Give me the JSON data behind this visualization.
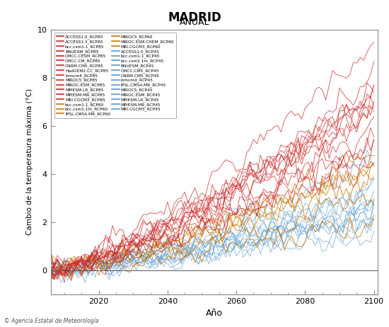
{
  "title": "MADRID",
  "subtitle": "ANUAL",
  "xlabel": "Año",
  "ylabel": "Cambio de la temperatura máxima (°C)",
  "xlim": [
    2006,
    2101
  ],
  "ylim": [
    -1,
    10
  ],
  "yticks": [
    0,
    2,
    4,
    6,
    8,
    10
  ],
  "xticks": [
    2020,
    2040,
    2060,
    2080,
    2100
  ],
  "bg_color": "#ffffff",
  "plot_bg": "#ffffff",
  "rcp85_color": "#cc2222",
  "rcp60_color": "#cc7700",
  "rcp45_color": "#5599cc",
  "legend_rcp85": [
    "ACCESS1.0_RCP85",
    "ACCESS1.3_RCP85",
    "bcc.csm1.1_RCP85",
    "BNUESM_RCP85",
    "CMCC.CESM_RCP85",
    "CMCC.CM_RCP85",
    "CNRM.CM5_RCP85",
    "HadGEM2.CC_RCP85",
    "Inmcm4_RCP85",
    "MIROC5_RCP85",
    "MIROC.ESM_RCP85",
    "MPIESM.LR_RCP85",
    "MPIESM.MR_RCP85",
    "MRI.CGCM3_RCP85"
  ],
  "legend_rcp60_left": [
    "bcc.csm1.1_RCP60",
    "bcc.csm1.1m_RCP60",
    "IPSL.CM5A.MR_RCP60"
  ],
  "legend_rcp60_right": [
    "MIROC5_RCP60",
    "MIROC.ESM.CHEM_RCP60",
    "MRI.CGCM3_RCP60"
  ],
  "legend_rcp45": [
    "ACCESS1.0_RCP45",
    "bcc.csm1.1_RCP45",
    "bcc.csm1.1m_RCP45",
    "BNUESM_RCP45",
    "CMCC.CM5_RCP45",
    "CNRM.CM5_RCP45",
    "Inmcm4_RCP45",
    "IPSL.CM5A.MR_RCP45",
    "MIROC5_RCP45",
    "MIROC.ESM_RCP45",
    "MPIESM.LR_RCP45",
    "MPIESM.MR_RCP45",
    "MRI.CGCM3_RCP45"
  ],
  "seed": 42,
  "n_rcp85": 14,
  "n_rcp60": 6,
  "n_rcp45": 13,
  "start_year": 2006,
  "end_year": 2100,
  "footer_text": "© Agencia Estatal de Meteorología"
}
